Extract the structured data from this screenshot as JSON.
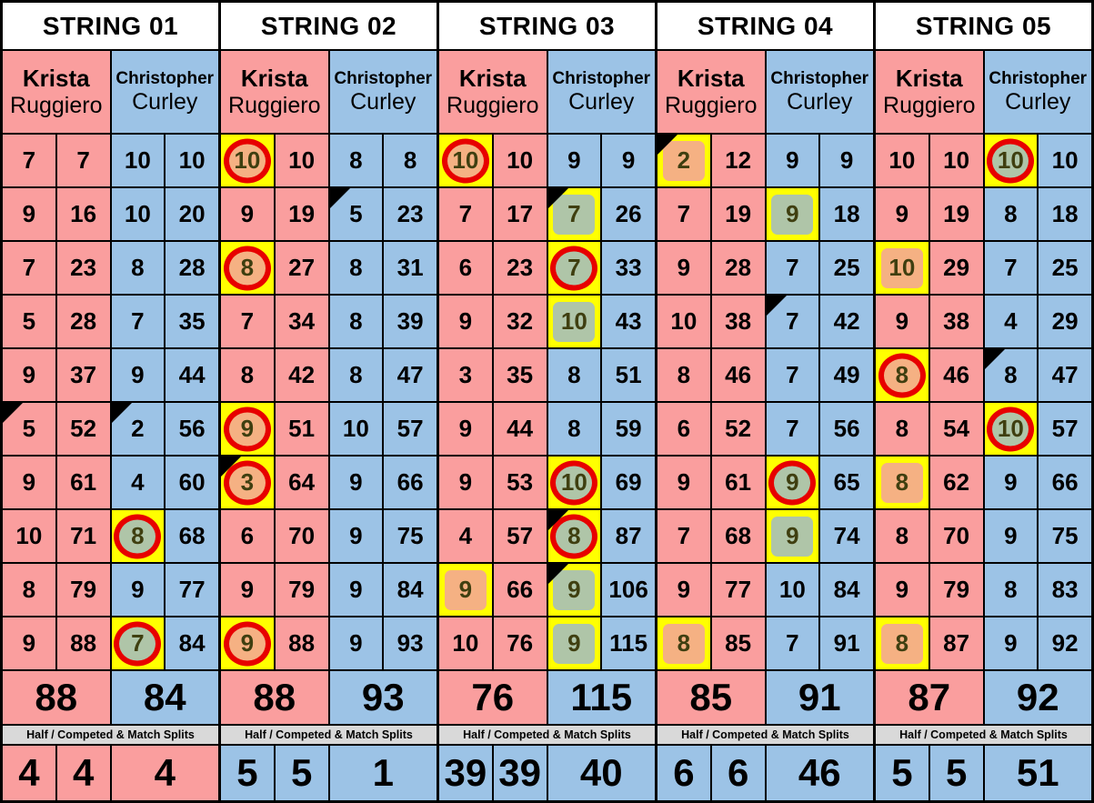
{
  "players": {
    "left": {
      "first": "Krista",
      "last": "Ruggiero"
    },
    "right": {
      "first": "Christopher",
      "last": "Curley"
    }
  },
  "splits_label": "Half / Competed & Match Splits",
  "colors": {
    "player_left": "#FA9E9E",
    "player_right": "#9CC3E6",
    "highlight_border": "#FFFF00",
    "highlight_left_fill": "#F5B183",
    "highlight_right_fill": "#AFC5A8",
    "circle_ring": "#E70000",
    "corner_flag": "#000000",
    "splits_header_bg": "#D9D9D9"
  },
  "legend": {
    "corner-flag-icon": "black triangle in top-left corner of a cell",
    "circle-annotation": "red ring drawn around a highlighted score",
    "highlight-box": "yellow-bordered box with orange (Krista) or green (Christopher) fill"
  },
  "strings": [
    {
      "title": "STRING 01",
      "rows": [
        {
          "k": {
            "v": "7",
            "c": "7"
          },
          "ch": {
            "v": "10",
            "c": "10"
          }
        },
        {
          "k": {
            "v": "9",
            "c": "16"
          },
          "ch": {
            "v": "10",
            "c": "20"
          }
        },
        {
          "k": {
            "v": "7",
            "c": "23"
          },
          "ch": {
            "v": "8",
            "c": "28"
          }
        },
        {
          "k": {
            "v": "5",
            "c": "28"
          },
          "ch": {
            "v": "7",
            "c": "35"
          }
        },
        {
          "k": {
            "v": "9",
            "c": "37"
          },
          "ch": {
            "v": "9",
            "c": "44"
          }
        },
        {
          "k": {
            "v": "5",
            "c": "52",
            "tri": true
          },
          "ch": {
            "v": "2",
            "c": "56",
            "tri": true
          }
        },
        {
          "k": {
            "v": "9",
            "c": "61"
          },
          "ch": {
            "v": "4",
            "c": "60"
          }
        },
        {
          "k": {
            "v": "10",
            "c": "71"
          },
          "ch": {
            "v": "8",
            "c": "68",
            "hl": "green",
            "circ": true
          }
        },
        {
          "k": {
            "v": "8",
            "c": "79"
          },
          "ch": {
            "v": "9",
            "c": "77"
          }
        },
        {
          "k": {
            "v": "9",
            "c": "88"
          },
          "ch": {
            "v": "7",
            "c": "84",
            "hl": "green",
            "circ": true
          }
        }
      ],
      "totals": {
        "k": "88",
        "ch": "84"
      },
      "splits": {
        "vals": [
          "4",
          "4",
          "4"
        ],
        "color": "pink"
      }
    },
    {
      "title": "STRING 02",
      "rows": [
        {
          "k": {
            "v": "10",
            "c": "10",
            "hl": "orange",
            "circ": true
          },
          "ch": {
            "v": "8",
            "c": "8"
          }
        },
        {
          "k": {
            "v": "9",
            "c": "19"
          },
          "ch": {
            "v": "5",
            "c": "23",
            "tri": true
          }
        },
        {
          "k": {
            "v": "8",
            "c": "27",
            "hl": "orange",
            "circ": true
          },
          "ch": {
            "v": "8",
            "c": "31"
          }
        },
        {
          "k": {
            "v": "7",
            "c": "34"
          },
          "ch": {
            "v": "8",
            "c": "39"
          }
        },
        {
          "k": {
            "v": "8",
            "c": "42"
          },
          "ch": {
            "v": "8",
            "c": "47"
          }
        },
        {
          "k": {
            "v": "9",
            "c": "51",
            "hl": "orange",
            "circ": true
          },
          "ch": {
            "v": "10",
            "c": "57"
          }
        },
        {
          "k": {
            "v": "3",
            "c": "64",
            "hl": "orange",
            "circ": true,
            "tri": true
          },
          "ch": {
            "v": "9",
            "c": "66"
          }
        },
        {
          "k": {
            "v": "6",
            "c": "70"
          },
          "ch": {
            "v": "9",
            "c": "75"
          }
        },
        {
          "k": {
            "v": "9",
            "c": "79"
          },
          "ch": {
            "v": "9",
            "c": "84"
          }
        },
        {
          "k": {
            "v": "9",
            "c": "88",
            "hl": "orange",
            "circ": true
          },
          "ch": {
            "v": "9",
            "c": "93"
          }
        }
      ],
      "totals": {
        "k": "88",
        "ch": "93"
      },
      "splits": {
        "vals": [
          "5",
          "5",
          "1"
        ],
        "color": "blue"
      }
    },
    {
      "title": "STRING 03",
      "rows": [
        {
          "k": {
            "v": "10",
            "c": "10",
            "hl": "orange",
            "circ": true
          },
          "ch": {
            "v": "9",
            "c": "9"
          }
        },
        {
          "k": {
            "v": "7",
            "c": "17"
          },
          "ch": {
            "v": "7",
            "c": "26",
            "hl": "green",
            "tri": true
          }
        },
        {
          "k": {
            "v": "6",
            "c": "23"
          },
          "ch": {
            "v": "7",
            "c": "33",
            "hl": "green",
            "circ": true
          }
        },
        {
          "k": {
            "v": "9",
            "c": "32"
          },
          "ch": {
            "v": "10",
            "c": "43",
            "hl": "green"
          }
        },
        {
          "k": {
            "v": "3",
            "c": "35"
          },
          "ch": {
            "v": "8",
            "c": "51"
          }
        },
        {
          "k": {
            "v": "9",
            "c": "44"
          },
          "ch": {
            "v": "8",
            "c": "59"
          }
        },
        {
          "k": {
            "v": "9",
            "c": "53"
          },
          "ch": {
            "v": "10",
            "c": "69",
            "hl": "green",
            "circ": true
          }
        },
        {
          "k": {
            "v": "4",
            "c": "57"
          },
          "ch": {
            "v": "8",
            "c": "87",
            "hl": "green",
            "circ": true,
            "tri": true
          }
        },
        {
          "k": {
            "v": "9",
            "c": "66",
            "hl": "orange"
          },
          "ch": {
            "v": "9",
            "c": "106",
            "hl": "green",
            "tri": true
          }
        },
        {
          "k": {
            "v": "10",
            "c": "76"
          },
          "ch": {
            "v": "9",
            "c": "115",
            "hl": "green"
          }
        }
      ],
      "totals": {
        "k": "76",
        "ch": "115"
      },
      "splits": {
        "vals": [
          "39",
          "39",
          "40"
        ],
        "color": "blue"
      }
    },
    {
      "title": "STRING 04",
      "rows": [
        {
          "k": {
            "v": "2",
            "c": "12",
            "hl": "orange",
            "tri": true
          },
          "ch": {
            "v": "9",
            "c": "9"
          }
        },
        {
          "k": {
            "v": "7",
            "c": "19"
          },
          "ch": {
            "v": "9",
            "c": "18",
            "hl": "green"
          }
        },
        {
          "k": {
            "v": "9",
            "c": "28"
          },
          "ch": {
            "v": "7",
            "c": "25"
          }
        },
        {
          "k": {
            "v": "10",
            "c": "38"
          },
          "ch": {
            "v": "7",
            "c": "42",
            "tri": true
          }
        },
        {
          "k": {
            "v": "8",
            "c": "46"
          },
          "ch": {
            "v": "7",
            "c": "49"
          }
        },
        {
          "k": {
            "v": "6",
            "c": "52"
          },
          "ch": {
            "v": "7",
            "c": "56"
          }
        },
        {
          "k": {
            "v": "9",
            "c": "61"
          },
          "ch": {
            "v": "9",
            "c": "65",
            "hl": "green",
            "circ": true
          }
        },
        {
          "k": {
            "v": "7",
            "c": "68"
          },
          "ch": {
            "v": "9",
            "c": "74",
            "hl": "green"
          }
        },
        {
          "k": {
            "v": "9",
            "c": "77"
          },
          "ch": {
            "v": "10",
            "c": "84"
          }
        },
        {
          "k": {
            "v": "8",
            "c": "85",
            "hl": "orange"
          },
          "ch": {
            "v": "7",
            "c": "91"
          }
        }
      ],
      "totals": {
        "k": "85",
        "ch": "91"
      },
      "splits": {
        "vals": [
          "6",
          "6",
          "46"
        ],
        "color": "blue"
      }
    },
    {
      "title": "STRING 05",
      "rows": [
        {
          "k": {
            "v": "10",
            "c": "10"
          },
          "ch": {
            "v": "10",
            "c": "10",
            "hl": "green",
            "circ": true
          }
        },
        {
          "k": {
            "v": "9",
            "c": "19"
          },
          "ch": {
            "v": "8",
            "c": "18"
          }
        },
        {
          "k": {
            "v": "10",
            "c": "29",
            "hl": "orange"
          },
          "ch": {
            "v": "7",
            "c": "25"
          }
        },
        {
          "k": {
            "v": "9",
            "c": "38"
          },
          "ch": {
            "v": "4",
            "c": "29"
          }
        },
        {
          "k": {
            "v": "8",
            "c": "46",
            "hl": "orange",
            "circ": true
          },
          "ch": {
            "v": "8",
            "c": "47",
            "tri": true
          }
        },
        {
          "k": {
            "v": "8",
            "c": "54"
          },
          "ch": {
            "v": "10",
            "c": "57",
            "hl": "green",
            "circ": true
          }
        },
        {
          "k": {
            "v": "8",
            "c": "62",
            "hl": "orange"
          },
          "ch": {
            "v": "9",
            "c": "66"
          }
        },
        {
          "k": {
            "v": "8",
            "c": "70"
          },
          "ch": {
            "v": "9",
            "c": "75"
          }
        },
        {
          "k": {
            "v": "9",
            "c": "79"
          },
          "ch": {
            "v": "8",
            "c": "83"
          }
        },
        {
          "k": {
            "v": "8",
            "c": "87",
            "hl": "orange"
          },
          "ch": {
            "v": "9",
            "c": "92"
          }
        }
      ],
      "totals": {
        "k": "87",
        "ch": "92"
      },
      "splits": {
        "vals": [
          "5",
          "5",
          "51"
        ],
        "color": "blue"
      }
    }
  ]
}
